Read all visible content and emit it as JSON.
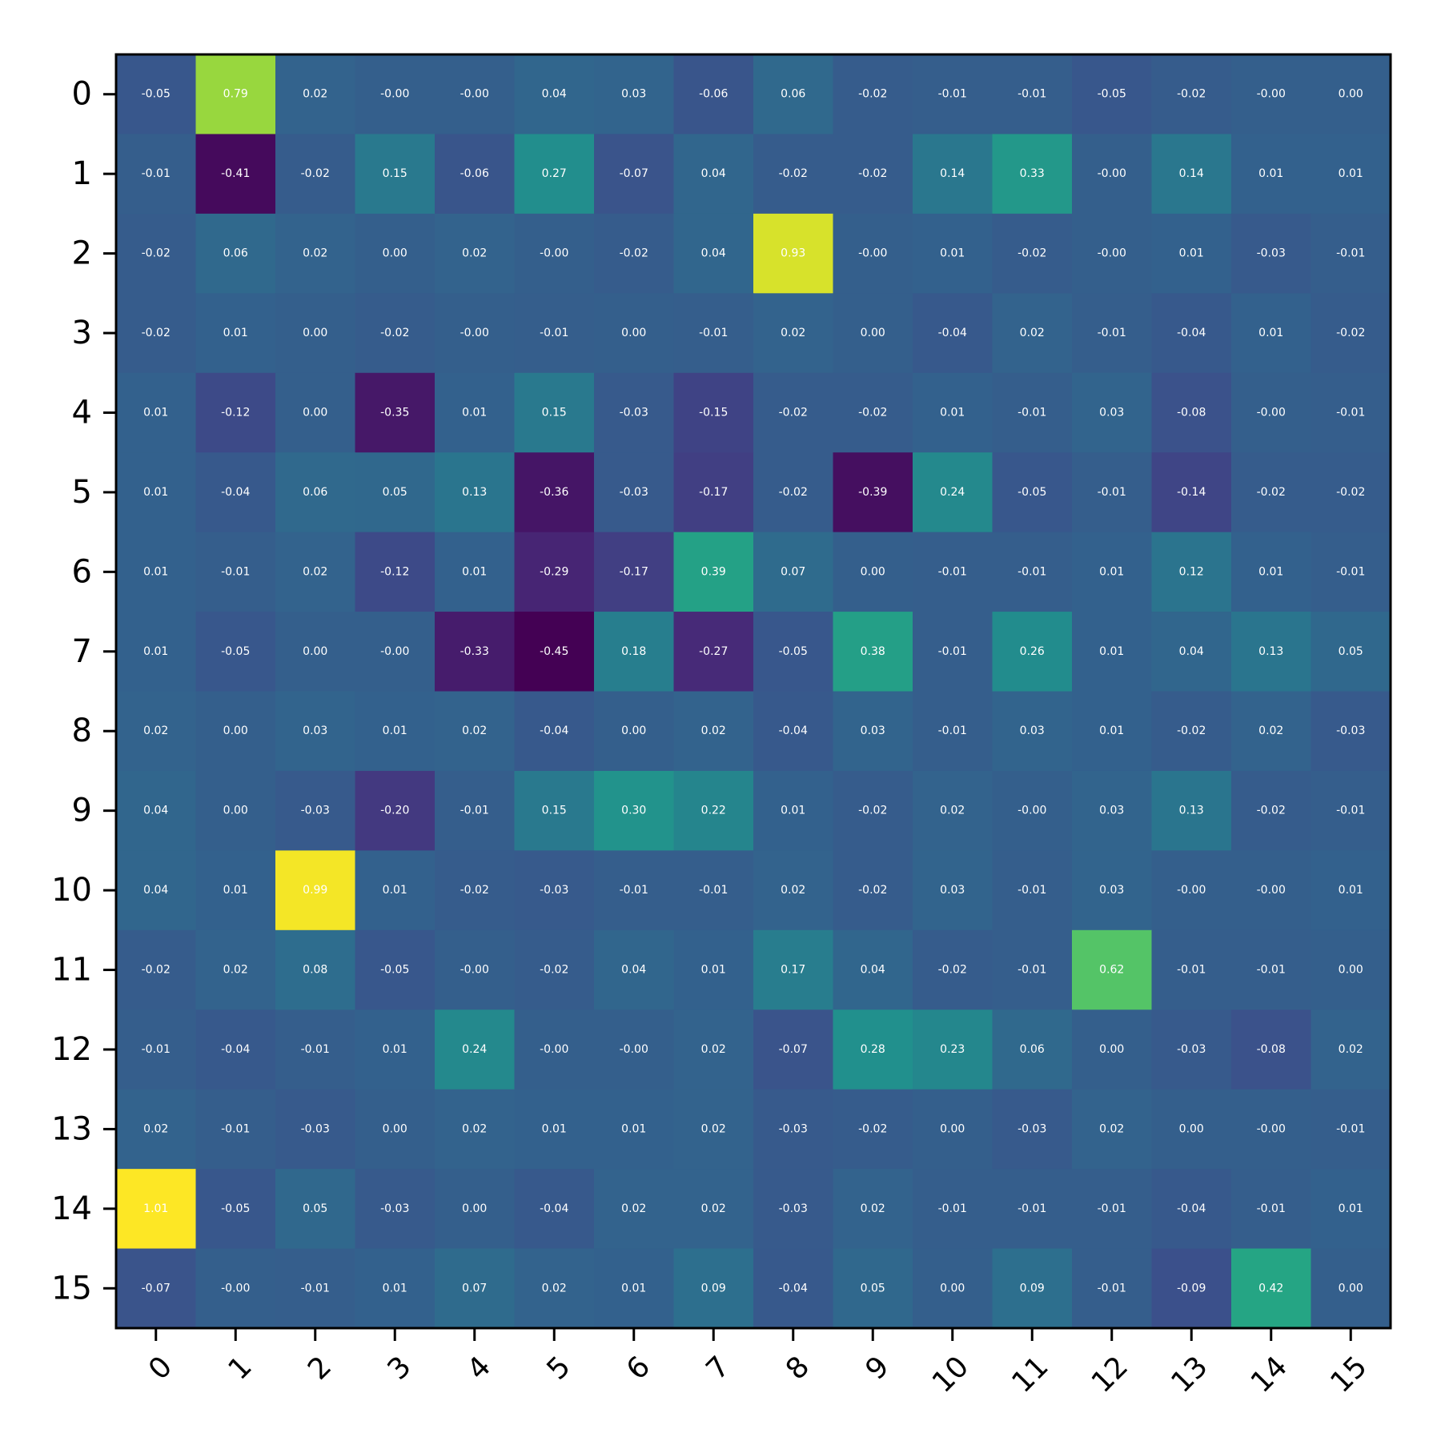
{
  "chart_data": {
    "type": "heatmap",
    "title": "",
    "xlabel": "",
    "ylabel": "",
    "colormap": "viridis",
    "color_range": [
      -0.45,
      1.01
    ],
    "x_categories": [
      "0",
      "1",
      "2",
      "3",
      "4",
      "5",
      "6",
      "7",
      "8",
      "9",
      "10",
      "11",
      "12",
      "13",
      "14",
      "15"
    ],
    "y_categories": [
      "0",
      "1",
      "2",
      "3",
      "4",
      "5",
      "6",
      "7",
      "8",
      "9",
      "10",
      "11",
      "12",
      "13",
      "14",
      "15"
    ],
    "x_tick_rotation_deg": 45,
    "cell_labels_shown": true,
    "cell_label_format": "0.00",
    "values": [
      [
        -0.05,
        0.79,
        0.02,
        -0.0,
        -0.0,
        0.04,
        0.03,
        -0.06,
        0.06,
        -0.02,
        -0.01,
        -0.01,
        -0.05,
        -0.02,
        -0.0,
        0.0
      ],
      [
        -0.01,
        -0.41,
        -0.02,
        0.15,
        -0.06,
        0.27,
        -0.07,
        0.04,
        -0.02,
        -0.02,
        0.14,
        0.33,
        -0.0,
        0.14,
        0.01,
        0.01
      ],
      [
        -0.02,
        0.06,
        0.02,
        0.0,
        0.02,
        -0.0,
        -0.02,
        0.04,
        0.93,
        -0.0,
        0.01,
        -0.02,
        -0.0,
        0.01,
        -0.03,
        -0.01
      ],
      [
        -0.02,
        0.01,
        0.0,
        -0.02,
        -0.0,
        -0.01,
        0.0,
        -0.01,
        0.02,
        0.0,
        -0.04,
        0.02,
        -0.01,
        -0.04,
        0.01,
        -0.02
      ],
      [
        0.01,
        -0.12,
        0.0,
        -0.35,
        0.01,
        0.15,
        -0.03,
        -0.15,
        -0.02,
        -0.02,
        0.01,
        -0.01,
        0.03,
        -0.08,
        -0.0,
        -0.01
      ],
      [
        0.01,
        -0.04,
        0.06,
        0.05,
        0.13,
        -0.36,
        -0.03,
        -0.17,
        -0.02,
        -0.39,
        0.24,
        -0.05,
        -0.01,
        -0.14,
        -0.02,
        -0.02
      ],
      [
        0.01,
        -0.01,
        0.02,
        -0.12,
        0.01,
        -0.29,
        -0.17,
        0.39,
        0.07,
        0.0,
        -0.01,
        -0.01,
        0.01,
        0.12,
        0.01,
        -0.01
      ],
      [
        0.01,
        -0.05,
        0.0,
        -0.0,
        -0.33,
        -0.45,
        0.18,
        -0.27,
        -0.05,
        0.38,
        -0.01,
        0.26,
        0.01,
        0.04,
        0.13,
        0.05
      ],
      [
        0.02,
        0.0,
        0.03,
        0.01,
        0.02,
        -0.04,
        0.0,
        0.02,
        -0.04,
        0.03,
        -0.01,
        0.03,
        0.01,
        -0.02,
        0.02,
        -0.03
      ],
      [
        0.04,
        0.0,
        -0.03,
        -0.2,
        -0.01,
        0.15,
        0.3,
        0.22,
        0.01,
        -0.02,
        0.02,
        -0.0,
        0.03,
        0.13,
        -0.02,
        -0.01
      ],
      [
        0.04,
        0.01,
        0.99,
        0.01,
        -0.02,
        -0.03,
        -0.01,
        -0.01,
        0.02,
        -0.02,
        0.03,
        -0.01,
        0.03,
        -0.0,
        -0.0,
        0.01
      ],
      [
        -0.02,
        0.02,
        0.08,
        -0.05,
        -0.0,
        -0.02,
        0.04,
        0.01,
        0.17,
        0.04,
        -0.02,
        -0.01,
        0.62,
        -0.01,
        -0.01,
        0.0
      ],
      [
        -0.01,
        -0.04,
        -0.01,
        0.01,
        0.24,
        -0.0,
        -0.0,
        0.02,
        -0.07,
        0.28,
        0.23,
        0.06,
        0.0,
        -0.03,
        -0.08,
        0.02
      ],
      [
        0.02,
        -0.01,
        -0.03,
        0.0,
        0.02,
        0.01,
        0.01,
        0.02,
        -0.03,
        -0.02,
        0.0,
        -0.03,
        0.02,
        0.0,
        -0.0,
        -0.01
      ],
      [
        1.01,
        -0.05,
        0.05,
        -0.03,
        0.0,
        -0.04,
        0.02,
        0.02,
        -0.03,
        0.02,
        -0.01,
        -0.01,
        -0.01,
        -0.04,
        -0.01,
        0.01
      ],
      [
        -0.07,
        -0.0,
        -0.01,
        0.01,
        0.07,
        0.02,
        0.01,
        0.09,
        -0.04,
        0.05,
        0.0,
        0.09,
        -0.01,
        -0.09,
        0.42,
        0.0
      ]
    ],
    "cell_label_text": [
      [
        "-0.05",
        "0.79",
        "0.02",
        "-0.00",
        "-0.00",
        "0.04",
        "0.03",
        "-0.06",
        "0.06",
        "-0.02",
        "-0.01",
        "-0.01",
        "-0.05",
        "-0.02",
        "-0.00",
        "0.00"
      ],
      [
        "-0.01",
        "-0.41",
        "-0.02",
        "0.15",
        "-0.06",
        "0.27",
        "-0.07",
        "0.04",
        "-0.02",
        "-0.02",
        "0.14",
        "0.33",
        "-0.00",
        "0.14",
        "0.01",
        "0.01"
      ],
      [
        "-0.02",
        "0.06",
        "0.02",
        "0.00",
        "0.02",
        "-0.00",
        "-0.02",
        "0.04",
        "0.93",
        "-0.00",
        "0.01",
        "-0.02",
        "-0.00",
        "0.01",
        "-0.03",
        "-0.01"
      ],
      [
        "-0.02",
        "0.01",
        "0.00",
        "-0.02",
        "-0.00",
        "-0.01",
        "0.00",
        "-0.01",
        "0.02",
        "0.00",
        "-0.04",
        "0.02",
        "-0.01",
        "-0.04",
        "0.01",
        "-0.02"
      ],
      [
        "0.01",
        "-0.12",
        "0.00",
        "-0.35",
        "0.01",
        "0.15",
        "-0.03",
        "-0.15",
        "-0.02",
        "-0.02",
        "0.01",
        "-0.01",
        "0.03",
        "-0.08",
        "-0.00",
        "-0.01"
      ],
      [
        "0.01",
        "-0.04",
        "0.06",
        "0.05",
        "0.13",
        "-0.36",
        "-0.03",
        "-0.17",
        "-0.02",
        "-0.39",
        "0.24",
        "-0.05",
        "-0.01",
        "-0.14",
        "-0.02",
        "-0.02"
      ],
      [
        "0.01",
        "-0.01",
        "0.02",
        "-0.12",
        "0.01",
        "-0.29",
        "-0.17",
        "0.39",
        "0.07",
        "0.00",
        "-0.01",
        "-0.01",
        "0.01",
        "0.12",
        "0.01",
        "-0.01"
      ],
      [
        "0.01",
        "-0.05",
        "0.00",
        "-0.00",
        "-0.33",
        "-0.45",
        "0.18",
        "-0.27",
        "-0.05",
        "0.38",
        "-0.01",
        "0.26",
        "0.01",
        "0.04",
        "0.13",
        "0.05"
      ],
      [
        "0.02",
        "0.00",
        "0.03",
        "0.01",
        "0.02",
        "-0.04",
        "0.00",
        "0.02",
        "-0.04",
        "0.03",
        "-0.01",
        "0.03",
        "0.01",
        "-0.02",
        "0.02",
        "-0.03"
      ],
      [
        "0.04",
        "0.00",
        "-0.03",
        "-0.20",
        "-0.01",
        "0.15",
        "0.30",
        "0.22",
        "0.01",
        "-0.02",
        "0.02",
        "-0.00",
        "0.03",
        "0.13",
        "-0.02",
        "-0.01"
      ],
      [
        "0.04",
        "0.01",
        "0.99",
        "0.01",
        "-0.02",
        "-0.03",
        "-0.01",
        "-0.01",
        "0.02",
        "-0.02",
        "0.03",
        "-0.01",
        "0.03",
        "-0.00",
        "-0.00",
        "0.01"
      ],
      [
        "-0.02",
        "0.02",
        "0.08",
        "-0.05",
        "-0.00",
        "-0.02",
        "0.04",
        "0.01",
        "0.17",
        "0.04",
        "-0.02",
        "-0.01",
        "0.62",
        "-0.01",
        "-0.01",
        "0.00"
      ],
      [
        "-0.01",
        "-0.04",
        "-0.01",
        "0.01",
        "0.24",
        "-0.00",
        "-0.00",
        "0.02",
        "-0.07",
        "0.28",
        "0.23",
        "0.06",
        "0.00",
        "-0.03",
        "-0.08",
        "0.02"
      ],
      [
        "0.02",
        "-0.01",
        "-0.03",
        "0.00",
        "0.02",
        "0.01",
        "0.01",
        "0.02",
        "-0.03",
        "-0.02",
        "0.00",
        "-0.03",
        "0.02",
        "0.00",
        "-0.00",
        "-0.01"
      ],
      [
        "1.01",
        "-0.05",
        "0.05",
        "-0.03",
        "0.00",
        "-0.04",
        "0.02",
        "0.02",
        "-0.03",
        "0.02",
        "-0.01",
        "-0.01",
        "-0.01",
        "-0.04",
        "-0.01",
        "0.01"
      ],
      [
        "-0.07",
        "-0.00",
        "-0.01",
        "0.01",
        "0.07",
        "0.02",
        "0.01",
        "0.09",
        "-0.04",
        "0.05",
        "0.00",
        "0.09",
        "-0.01",
        "-0.09",
        "0.42",
        "0.00"
      ]
    ]
  }
}
